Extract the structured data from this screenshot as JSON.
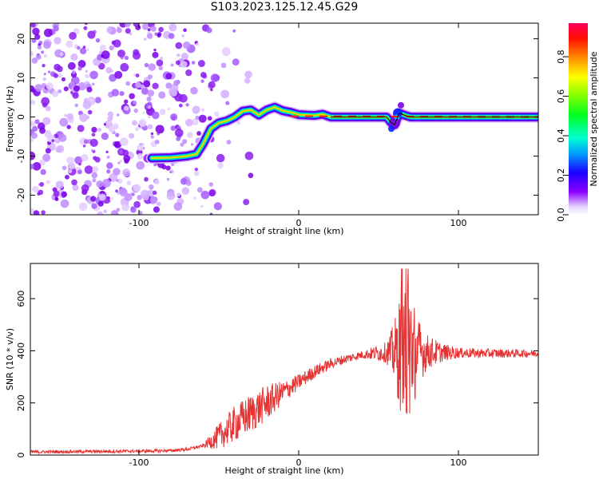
{
  "title": "S103.2023.125.12.45.G29",
  "chart_data": [
    {
      "type": "heatmap",
      "xlabel": "Height of straight line (km)",
      "ylabel": "Frequency (Hz)",
      "xlim": [
        -168,
        150
      ],
      "ylim": [
        -25,
        24
      ],
      "x_ticks": [
        -100,
        0,
        100
      ],
      "y_ticks": [
        -20,
        -10,
        0,
        10,
        20
      ],
      "colorbar": {
        "label": "Normalized spectral amplitude",
        "range": [
          0,
          0.97
        ],
        "ticks": [
          0.0,
          0.2,
          0.4,
          0.6,
          0.8
        ]
      },
      "ridge": [
        [
          -92,
          -10.5
        ],
        [
          -80,
          -10.4
        ],
        [
          -70,
          -10
        ],
        [
          -64,
          -9.5
        ],
        [
          -60,
          -7
        ],
        [
          -55,
          -3
        ],
        [
          -50,
          -1.5
        ],
        [
          -45,
          -1
        ],
        [
          -40,
          0
        ],
        [
          -35,
          1.5
        ],
        [
          -30,
          1.8
        ],
        [
          -25,
          0.5
        ],
        [
          -20,
          1.8
        ],
        [
          -15,
          2.5
        ],
        [
          -10,
          1.6
        ],
        [
          -5,
          1.2
        ],
        [
          0,
          0.6
        ],
        [
          10,
          0.4
        ],
        [
          15,
          0.7
        ],
        [
          20,
          0
        ],
        [
          40,
          0
        ],
        [
          45,
          0
        ],
        [
          55,
          0
        ],
        [
          58,
          -1.5
        ],
        [
          60,
          -2
        ],
        [
          63,
          1
        ],
        [
          66,
          0.5
        ],
        [
          70,
          0
        ],
        [
          100,
          0
        ],
        [
          150,
          0
        ]
      ],
      "noise_region_x": [
        -168,
        -60
      ]
    },
    {
      "type": "line",
      "xlabel": "Height of straight line (km)",
      "ylabel": "SNR (10 * v/v)",
      "xlim": [
        -168,
        150
      ],
      "ylim": [
        0,
        735
      ],
      "x_ticks": [
        -100,
        0,
        100
      ],
      "y_ticks": [
        0,
        200,
        400,
        600
      ],
      "color": "#e53333",
      "envelope": [
        [
          -168,
          12
        ],
        [
          -120,
          14
        ],
        [
          -100,
          15
        ],
        [
          -80,
          17
        ],
        [
          -70,
          22
        ],
        [
          -60,
          35
        ],
        [
          -50,
          70
        ],
        [
          -40,
          120
        ],
        [
          -30,
          160
        ],
        [
          -20,
          200
        ],
        [
          -10,
          240
        ],
        [
          0,
          280
        ],
        [
          10,
          320
        ],
        [
          20,
          350
        ],
        [
          30,
          370
        ],
        [
          40,
          385
        ],
        [
          50,
          392
        ],
        [
          60,
          395
        ],
        [
          65,
          395
        ],
        [
          70,
          395
        ],
        [
          80,
          395
        ],
        [
          100,
          392
        ],
        [
          120,
          390
        ],
        [
          150,
          390
        ]
      ],
      "noise_amplitude": [
        [
          -168,
          6
        ],
        [
          -60,
          6
        ],
        [
          -50,
          50
        ],
        [
          -40,
          70
        ],
        [
          -30,
          75
        ],
        [
          -20,
          70
        ],
        [
          -10,
          45
        ],
        [
          0,
          30
        ],
        [
          20,
          20
        ],
        [
          40,
          15
        ],
        [
          55,
          40
        ],
        [
          60,
          120
        ],
        [
          65,
          280
        ],
        [
          67,
          340
        ],
        [
          70,
          260
        ],
        [
          75,
          130
        ],
        [
          80,
          70
        ],
        [
          90,
          35
        ],
        [
          100,
          20
        ],
        [
          150,
          14
        ]
      ]
    }
  ]
}
